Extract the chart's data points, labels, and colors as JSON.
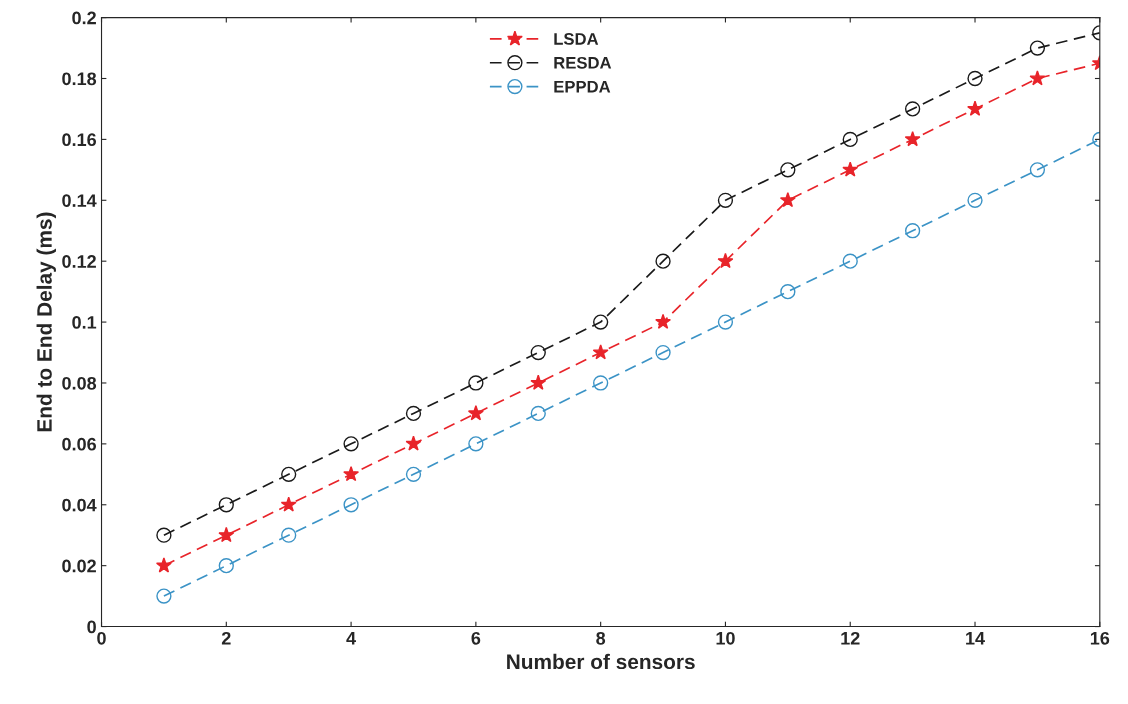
{
  "chart_data": {
    "type": "line",
    "xlabel": "Number of sensors",
    "ylabel": "End to End Delay (ms)",
    "x": [
      1,
      2,
      3,
      4,
      5,
      6,
      7,
      8,
      9,
      10,
      11,
      12,
      13,
      14,
      15,
      16
    ],
    "series": [
      {
        "name": "LSDA",
        "color": "#e8242a",
        "marker": "star",
        "values": [
          0.02,
          0.03,
          0.04,
          0.05,
          0.06,
          0.07,
          0.08,
          0.09,
          0.1,
          0.12,
          0.14,
          0.15,
          0.16,
          0.17,
          0.18,
          0.185
        ]
      },
      {
        "name": "RESDA",
        "color": "#1a1a1a",
        "marker": "circle",
        "values": [
          0.03,
          0.04,
          0.05,
          0.06,
          0.07,
          0.08,
          0.09,
          0.1,
          0.12,
          0.14,
          0.15,
          0.16,
          0.17,
          0.18,
          0.19,
          0.195
        ]
      },
      {
        "name": "EPPDA",
        "color": "#3b93c6",
        "marker": "circle",
        "values": [
          0.01,
          0.02,
          0.03,
          0.04,
          0.05,
          0.06,
          0.07,
          0.08,
          0.09,
          0.1,
          0.11,
          0.12,
          0.13,
          0.14,
          0.15,
          0.16
        ]
      }
    ],
    "line_style": "dashed",
    "legend": "top",
    "grid": false,
    "xlim": [
      0,
      16
    ],
    "xticks": [
      0,
      2,
      4,
      6,
      8,
      10,
      12,
      14,
      16
    ],
    "ylim": [
      0,
      0.2
    ],
    "yticks": [
      0,
      0.02,
      0.04,
      0.06,
      0.08,
      0.1,
      0.12,
      0.14,
      0.16,
      0.18,
      0.2
    ]
  }
}
